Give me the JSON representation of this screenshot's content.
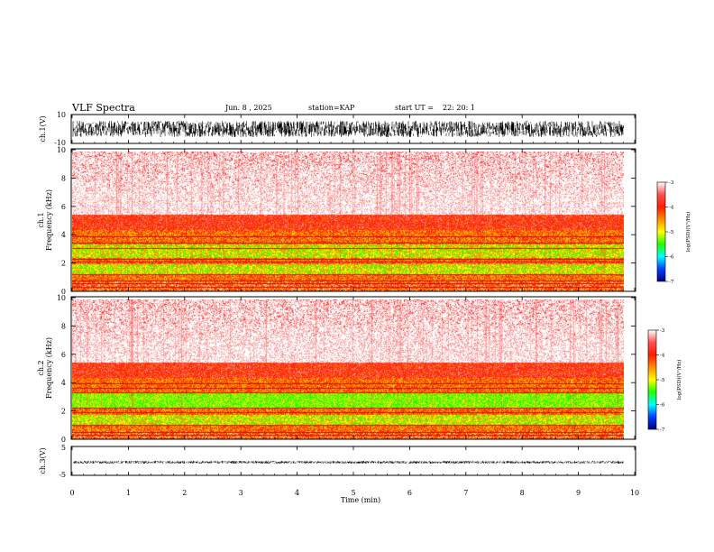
{
  "header": {
    "title": "VLF Spectra",
    "date": "Jun. 8 , 2025",
    "station": "station=KAP",
    "start": "start UT =",
    "start_time": "22: 20: 1"
  },
  "colors": {
    "background": "#ffffff",
    "waveform": "#000000",
    "ramp": [
      "#ffffff",
      "#ff5050",
      "#ff1a00",
      "#ff8c00",
      "#ffff00",
      "#20ff00",
      "#00ffff",
      "#0040ff",
      "#000080"
    ]
  },
  "chart_data": [
    {
      "type": "line",
      "name": "ch1-waveform",
      "ylabel": "ch.1(V)",
      "ylim": [
        -10,
        10
      ],
      "yticks": [
        "10",
        "-10"
      ],
      "amplitude_range": [
        -6,
        6
      ],
      "x_extent_min": 9.8
    },
    {
      "type": "heatmap",
      "name": "ch1-spectrogram",
      "ylabel_line1": "ch.1",
      "ylabel_line2": "Frequency (kHz)",
      "ylim": [
        0,
        10
      ],
      "yticks": [
        "0",
        "2",
        "4",
        "6",
        "8",
        "10"
      ],
      "colorbar": {
        "label": "log(PSD)(V²/Hz)",
        "ticks": [
          "-3",
          "-4",
          "-5",
          "-6",
          "-7"
        ],
        "range": [
          -7,
          -3
        ]
      },
      "bands": [
        {
          "from_khz": 0.0,
          "to_khz": 0.8,
          "level": "orange-red lines"
        },
        {
          "from_khz": 0.8,
          "to_khz": 1.2,
          "level": "orange"
        },
        {
          "from_khz": 1.2,
          "to_khz": 2.0,
          "level": "yellow-green"
        },
        {
          "from_khz": 2.0,
          "to_khz": 2.4,
          "level": "orange"
        },
        {
          "from_khz": 2.4,
          "to_khz": 3.4,
          "level": "yellow-green"
        },
        {
          "from_khz": 3.4,
          "to_khz": 4.4,
          "level": "orange"
        },
        {
          "from_khz": 4.4,
          "to_khz": 5.5,
          "level": "red"
        },
        {
          "from_khz": 5.5,
          "to_khz": 10.0,
          "level": "white-red speckle"
        }
      ],
      "lines_khz": [
        0.35,
        0.55,
        0.75,
        1.25,
        2.1,
        2.35,
        3.1,
        3.5,
        3.95
      ]
    },
    {
      "type": "heatmap",
      "name": "ch2-spectrogram",
      "ylabel_line1": "ch.2",
      "ylabel_line2": "Frequency (kHz)",
      "ylim": [
        0,
        10
      ],
      "yticks": [
        "0",
        "2",
        "4",
        "6",
        "8",
        "10"
      ],
      "colorbar": {
        "label": "log(PSD)(V²/Hz)",
        "ticks": [
          "-3",
          "-4",
          "-5",
          "-6",
          "-7"
        ],
        "range": [
          -7,
          -3
        ]
      },
      "bands": [
        {
          "from_khz": 0.0,
          "to_khz": 0.6,
          "level": "orange-red lines"
        },
        {
          "from_khz": 0.6,
          "to_khz": 1.0,
          "level": "orange"
        },
        {
          "from_khz": 1.0,
          "to_khz": 1.8,
          "level": "yellow-green"
        },
        {
          "from_khz": 1.8,
          "to_khz": 2.2,
          "level": "orange"
        },
        {
          "from_khz": 2.2,
          "to_khz": 3.3,
          "level": "green"
        },
        {
          "from_khz": 3.3,
          "to_khz": 4.4,
          "level": "orange"
        },
        {
          "from_khz": 4.4,
          "to_khz": 5.5,
          "level": "red"
        },
        {
          "from_khz": 5.5,
          "to_khz": 10.0,
          "level": "white-red speckle"
        }
      ],
      "lines_khz": [
        0.3,
        0.5,
        1.05,
        1.95,
        2.25,
        3.35,
        3.7,
        4.0
      ]
    },
    {
      "type": "line",
      "name": "ch3-waveform",
      "ylabel": "ch.3(V)",
      "ylim": [
        -5,
        5
      ],
      "yticks": [
        "5",
        "-5"
      ],
      "amplitude_range": [
        -1,
        0
      ],
      "x_extent_min": 9.8
    }
  ],
  "xaxis": {
    "label": "Time (min)",
    "range": [
      0,
      10
    ],
    "ticks": [
      "0",
      "1",
      "2",
      "3",
      "4",
      "5",
      "6",
      "7",
      "8",
      "9",
      "10"
    ]
  }
}
